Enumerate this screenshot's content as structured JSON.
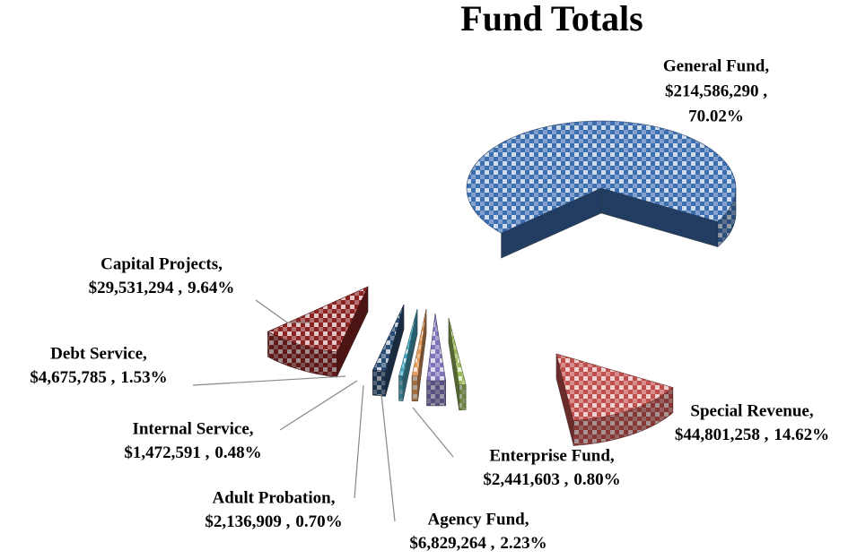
{
  "chart_data": {
    "type": "pie",
    "title": "Fund Totals",
    "categories": [
      "General Fund,",
      "Special Revenue,",
      "Enterprise Fund,",
      "Agency Fund,",
      "Adult Probation,",
      "Internal Service,",
      "Debt Service,",
      "Capital Projects,"
    ],
    "values": [
      214586290,
      44801258,
      2441603,
      6829264,
      2136909,
      1472591,
      4675785,
      29531294
    ],
    "value_labels": [
      "$214,586,290 ,",
      "$44,801,258 ,",
      "$2,441,603 ,",
      "$6,829,264 ,",
      "$2,136,909 ,",
      "$1,472,591 ,",
      "$4,675,785 ,",
      "$29,531,294 ,"
    ],
    "percents": [
      70.02,
      14.62,
      0.8,
      2.23,
      0.7,
      0.48,
      1.53,
      9.64
    ],
    "percent_labels": [
      "70.02%",
      "14.62%",
      "0.80%",
      "2.23%",
      "0.70%",
      "0.48%",
      "1.53%",
      "9.64%"
    ],
    "colors": [
      "#3d6fb0",
      "#c0504d",
      "#9bbb59",
      "#7e72b8",
      "#e89c5a",
      "#4bacc6",
      "#2c4d75",
      "#8b2323"
    ]
  }
}
